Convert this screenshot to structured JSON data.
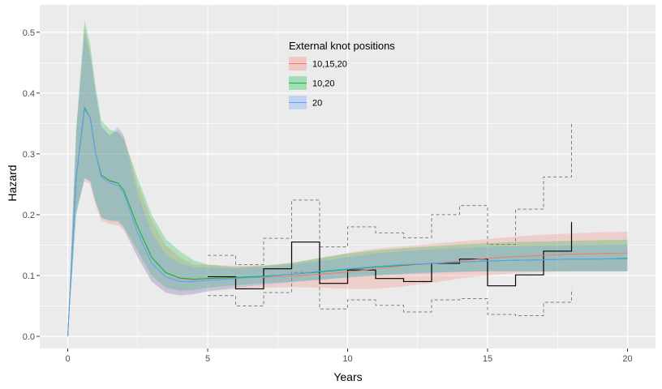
{
  "chart_data": {
    "type": "line",
    "title": "",
    "xlabel": "Years",
    "ylabel": "Hazard",
    "xlim": [
      -1,
      21
    ],
    "ylim": [
      -0.02,
      0.545
    ],
    "x_ticks": [
      0,
      5,
      10,
      15,
      20
    ],
    "x_tick_labels": [
      "0",
      "5",
      "10",
      "15",
      "20"
    ],
    "y_ticks": [
      0.0,
      0.1,
      0.2,
      0.3,
      0.4,
      0.5
    ],
    "y_tick_labels": [
      "0.0",
      "0.1",
      "0.2",
      "0.3",
      "0.4",
      "0.5"
    ],
    "grid": true,
    "background": "#ebebeb",
    "legend": {
      "title": "External knot positions",
      "position": "top-center",
      "entries": [
        "10,15,20",
        "10,20",
        "20"
      ]
    },
    "series": [
      {
        "name": "10,15,20",
        "color": "#f8766d",
        "x": [
          0,
          0.3,
          0.6,
          0.8,
          1.0,
          1.2,
          1.5,
          1.8,
          2.0,
          2.5,
          3.0,
          3.5,
          4.0,
          4.5,
          5.0,
          6.0,
          7.0,
          8.0,
          9.0,
          10.0,
          11.0,
          12.0,
          13.0,
          14.0,
          15.0,
          16.0,
          17.0,
          18.0,
          19.0,
          20.0
        ],
        "y": [
          0.0,
          0.26,
          0.375,
          0.36,
          0.3,
          0.265,
          0.255,
          0.252,
          0.24,
          0.18,
          0.13,
          0.105,
          0.095,
          0.093,
          0.095,
          0.096,
          0.097,
          0.099,
          0.102,
          0.106,
          0.111,
          0.116,
          0.12,
          0.124,
          0.128,
          0.131,
          0.133,
          0.135,
          0.136,
          0.137
        ],
        "lower": [
          0.0,
          0.21,
          0.255,
          0.25,
          0.215,
          0.19,
          0.185,
          0.182,
          0.175,
          0.13,
          0.09,
          0.072,
          0.068,
          0.07,
          0.074,
          0.078,
          0.08,
          0.081,
          0.08,
          0.078,
          0.078,
          0.082,
          0.088,
          0.095,
          0.1,
          0.104,
          0.106,
          0.107,
          0.107,
          0.107
        ],
        "upper": [
          0.0,
          0.33,
          0.51,
          0.47,
          0.4,
          0.345,
          0.33,
          0.34,
          0.33,
          0.25,
          0.19,
          0.15,
          0.13,
          0.118,
          0.118,
          0.116,
          0.117,
          0.12,
          0.128,
          0.137,
          0.144,
          0.148,
          0.152,
          0.156,
          0.16,
          0.164,
          0.167,
          0.169,
          0.171,
          0.172
        ]
      },
      {
        "name": "10,20",
        "color": "#00ba38",
        "x": [
          0,
          0.3,
          0.6,
          0.8,
          1.0,
          1.2,
          1.5,
          1.8,
          2.0,
          2.5,
          3.0,
          3.5,
          4.0,
          4.5,
          5.0,
          6.0,
          7.0,
          8.0,
          9.0,
          10.0,
          11.0,
          12.0,
          13.0,
          14.0,
          15.0,
          16.0,
          17.0,
          18.0,
          19.0,
          20.0
        ],
        "y": [
          0.0,
          0.26,
          0.376,
          0.36,
          0.3,
          0.265,
          0.256,
          0.252,
          0.24,
          0.18,
          0.13,
          0.105,
          0.096,
          0.094,
          0.095,
          0.097,
          0.099,
          0.102,
          0.106,
          0.11,
          0.114,
          0.117,
          0.12,
          0.122,
          0.124,
          0.125,
          0.126,
          0.127,
          0.127,
          0.128
        ],
        "lower": [
          0.0,
          0.2,
          0.26,
          0.255,
          0.22,
          0.195,
          0.19,
          0.19,
          0.18,
          0.14,
          0.1,
          0.08,
          0.075,
          0.076,
          0.08,
          0.084,
          0.087,
          0.09,
          0.093,
          0.097,
          0.1,
          0.103,
          0.105,
          0.106,
          0.107,
          0.107,
          0.107,
          0.107,
          0.107,
          0.107
        ],
        "upper": [
          0.0,
          0.34,
          0.52,
          0.48,
          0.41,
          0.355,
          0.34,
          0.335,
          0.325,
          0.26,
          0.2,
          0.16,
          0.14,
          0.125,
          0.118,
          0.114,
          0.116,
          0.121,
          0.129,
          0.136,
          0.141,
          0.145,
          0.148,
          0.151,
          0.153,
          0.155,
          0.156,
          0.157,
          0.158,
          0.159
        ]
      },
      {
        "name": "20",
        "color": "#619cff",
        "x": [
          0,
          0.3,
          0.6,
          0.8,
          1.0,
          1.2,
          1.5,
          1.8,
          2.0,
          2.5,
          3.0,
          3.5,
          4.0,
          4.5,
          5.0,
          6.0,
          7.0,
          8.0,
          9.0,
          10.0,
          11.0,
          12.0,
          13.0,
          14.0,
          15.0,
          16.0,
          17.0,
          18.0,
          19.0,
          20.0
        ],
        "y": [
          0.0,
          0.26,
          0.374,
          0.36,
          0.3,
          0.262,
          0.252,
          0.248,
          0.235,
          0.17,
          0.12,
          0.098,
          0.09,
          0.09,
          0.092,
          0.095,
          0.098,
          0.102,
          0.107,
          0.111,
          0.115,
          0.118,
          0.12,
          0.122,
          0.124,
          0.125,
          0.126,
          0.127,
          0.127,
          0.127
        ],
        "lower": [
          0.0,
          0.2,
          0.26,
          0.255,
          0.22,
          0.195,
          0.19,
          0.188,
          0.178,
          0.13,
          0.09,
          0.072,
          0.067,
          0.069,
          0.074,
          0.08,
          0.085,
          0.089,
          0.093,
          0.097,
          0.1,
          0.102,
          0.104,
          0.106,
          0.107,
          0.107,
          0.107,
          0.107,
          0.107,
          0.107
        ],
        "upper": [
          0.0,
          0.34,
          0.5,
          0.46,
          0.4,
          0.345,
          0.33,
          0.345,
          0.33,
          0.235,
          0.17,
          0.135,
          0.12,
          0.114,
          0.113,
          0.112,
          0.114,
          0.118,
          0.124,
          0.13,
          0.136,
          0.14,
          0.143,
          0.145,
          0.147,
          0.148,
          0.149,
          0.15,
          0.15,
          0.151
        ]
      }
    ],
    "empirical": {
      "color": "#000000",
      "band_color": "#7f7f7f",
      "bins": [
        {
          "x0": 5,
          "x1": 6,
          "y": 0.098,
          "lower": 0.067,
          "upper": 0.133
        },
        {
          "x0": 6,
          "x1": 7,
          "y": 0.078,
          "lower": 0.05,
          "upper": 0.118
        },
        {
          "x0": 7,
          "x1": 8,
          "y": 0.111,
          "lower": 0.072,
          "upper": 0.161
        },
        {
          "x0": 8,
          "x1": 9,
          "y": 0.155,
          "lower": 0.105,
          "upper": 0.224
        },
        {
          "x0": 9,
          "x1": 10,
          "y": 0.087,
          "lower": 0.045,
          "upper": 0.147
        },
        {
          "x0": 10,
          "x1": 11,
          "y": 0.109,
          "lower": 0.06,
          "upper": 0.18
        },
        {
          "x0": 11,
          "x1": 12,
          "y": 0.095,
          "lower": 0.051,
          "upper": 0.17
        },
        {
          "x0": 12,
          "x1": 13,
          "y": 0.09,
          "lower": 0.04,
          "upper": 0.162
        },
        {
          "x0": 13,
          "x1": 14,
          "y": 0.12,
          "lower": 0.06,
          "upper": 0.2
        },
        {
          "x0": 14,
          "x1": 15,
          "y": 0.127,
          "lower": 0.062,
          "upper": 0.215
        },
        {
          "x0": 15,
          "x1": 16,
          "y": 0.083,
          "lower": 0.036,
          "upper": 0.151
        },
        {
          "x0": 16,
          "x1": 17,
          "y": 0.101,
          "lower": 0.034,
          "upper": 0.209
        },
        {
          "x0": 17,
          "x1": 18,
          "y": 0.14,
          "lower": 0.056,
          "upper": 0.262
        },
        {
          "x0": 18,
          "x1": 18,
          "y": 0.188,
          "lower": 0.078,
          "upper": 0.352
        }
      ]
    }
  }
}
